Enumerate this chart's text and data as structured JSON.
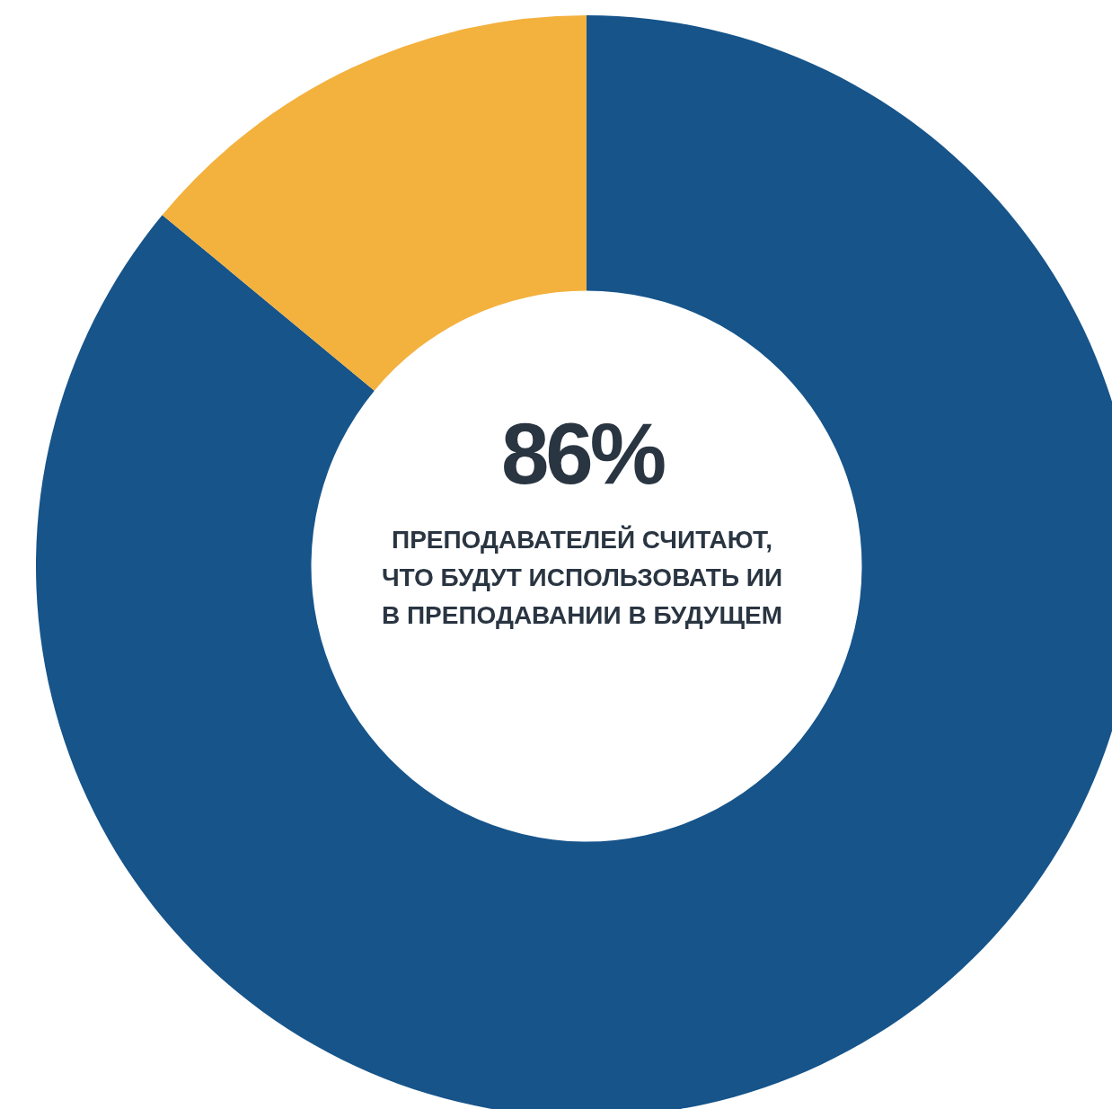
{
  "chart_data": {
    "type": "donut",
    "categories": [
      null,
      null
    ],
    "values": [
      86,
      14
    ],
    "colors": [
      "#16548a",
      "#f3b13d"
    ],
    "value_labels": [
      "86%",
      null
    ],
    "annotations": [
      "ПРЕПОДАВАТЕЛЕЙ СЧИТАЮТ,\nЧТО БУДУТ ИСПОЛЬЗОВАТЬ ИИ\nВ ПРЕПОДАВАНИИ В БУДУЩЕМ"
    ]
  }
}
